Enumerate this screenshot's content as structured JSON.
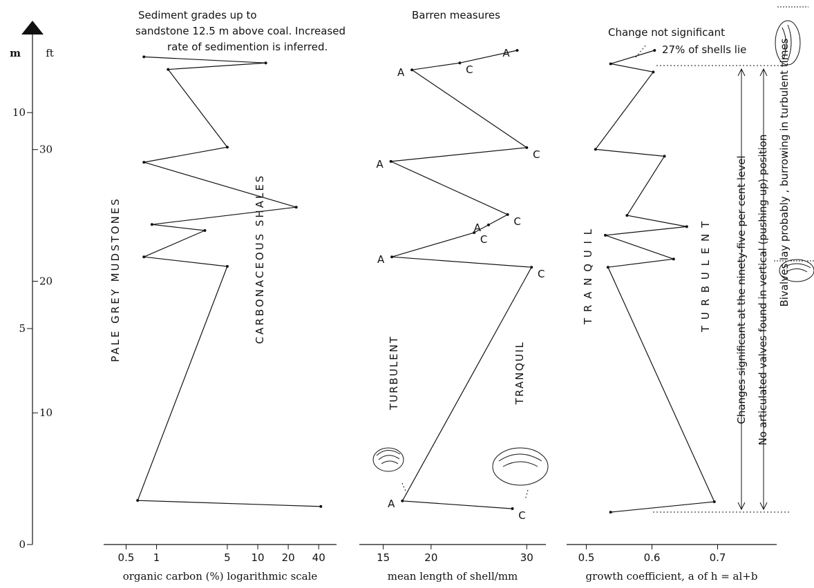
{
  "chart_data": [
    {
      "type": "line",
      "xscale": "log",
      "xlabel": "organic carbon (%) logarithmic scale",
      "xlim": [
        0.3,
        60
      ],
      "xticks": [
        0.5,
        1,
        5,
        10,
        20,
        40
      ],
      "ylim": [
        0,
        12
      ],
      "yticks": [
        0,
        5,
        10
      ],
      "y_unit": "m",
      "y2lim": [
        0,
        39.37
      ],
      "y2ticks": [
        10,
        20,
        30
      ],
      "y2_unit": "ft",
      "values": [
        0.75,
        12,
        1.3,
        5,
        0.75,
        24,
        0.9,
        3,
        0.75,
        5,
        0.65,
        42
      ],
      "height": [
        11.29,
        11.15,
        11.0,
        9.2,
        8.85,
        7.81,
        7.41,
        7.27,
        6.66,
        6.44,
        1.02,
        0.88
      ],
      "annotations": [
        "Sediment grades up to",
        "sandstone 12.5 m above coal. Increased",
        "rate of sedimention is inferred.",
        "PALE  GREY  MUDSTONES",
        "CARBONACEOUS  SHALES"
      ]
    },
    {
      "type": "line",
      "xscale": "linear",
      "xlabel": "mean length of shell/mm",
      "xlim": [
        12.5,
        32
      ],
      "xticks": [
        15,
        20,
        30
      ],
      "values": [
        29,
        23,
        18,
        30,
        15.8,
        28,
        26,
        24.5,
        15.9,
        30.5,
        17,
        28.5
      ],
      "height": [
        11.44,
        11.15,
        10.99,
        9.19,
        8.87,
        7.64,
        7.4,
        7.22,
        6.66,
        6.42,
        1.01,
        0.83
      ],
      "point_labels": [
        "A",
        "C",
        "A",
        "C",
        "A",
        "C",
        "A",
        "C",
        "A",
        "C",
        "A",
        "C"
      ],
      "annotations": [
        "Barren measures",
        "TURBULENT",
        "TRANQUIL"
      ]
    },
    {
      "type": "line",
      "xscale": "linear",
      "xlabel": "growth coefficient, a of h = al+b",
      "xlim": [
        0.47,
        0.79
      ],
      "xticks": [
        0.5,
        0.6,
        0.7
      ],
      "values": [
        0.604,
        0.537,
        0.602,
        0.514,
        0.619,
        0.562,
        0.653,
        0.529,
        0.633,
        0.533,
        0.695,
        0.537
      ],
      "height": [
        11.44,
        11.13,
        10.94,
        9.15,
        8.99,
        7.62,
        7.36,
        7.16,
        6.61,
        6.42,
        0.99,
        0.75
      ],
      "annotations": [
        "Change not significant",
        "27% of shells lie",
        "T R A N Q U I L",
        "T U R B U L E N T",
        "Changes significant at the ninety-five per cent level",
        "No articulated valves found in vertical (pushing-up) position",
        "Bivalves lay probably , burrowing in turbulent times"
      ]
    }
  ]
}
